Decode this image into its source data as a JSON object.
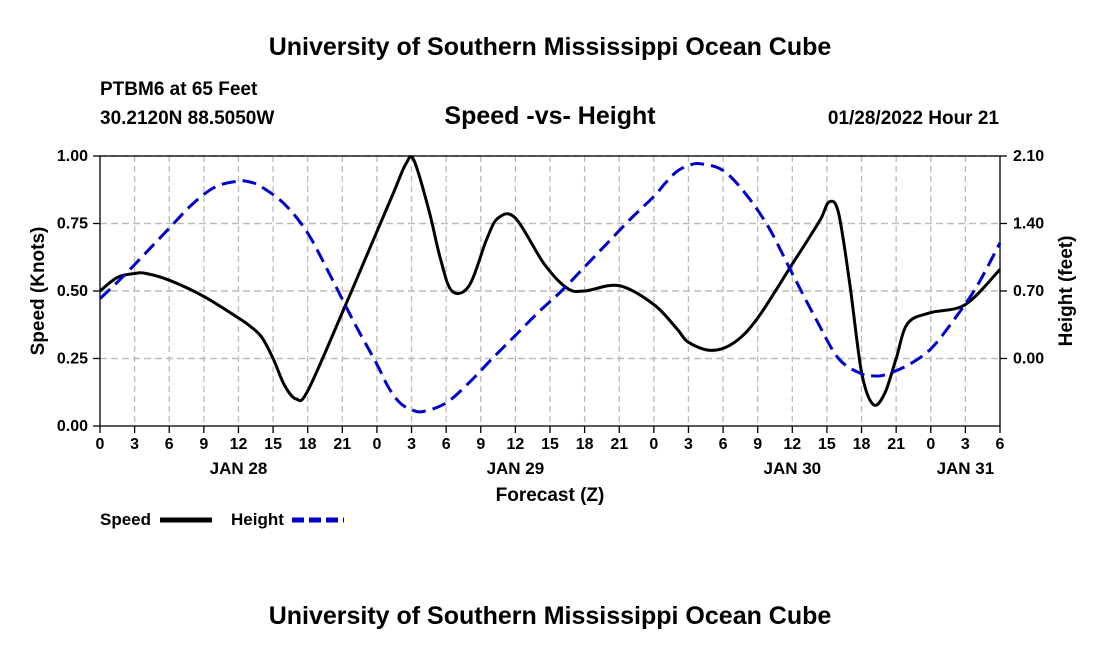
{
  "header": {
    "title": "University of Southern Mississippi Ocean Cube",
    "footer_title": "University of Southern Mississippi Ocean Cube",
    "station": "PTBM6 at 65 Feet",
    "coordinates": "30.2120N  88.5050W",
    "subtitle": "Speed -vs- Height",
    "datetime": "01/28/2022 Hour 21"
  },
  "legend": {
    "speed_label": "Speed",
    "height_label": "Height"
  },
  "colors": {
    "speed": "#000000",
    "height": "#0000cc",
    "grid": "#bbbbbb"
  },
  "chart_data": {
    "type": "line",
    "title": "Speed -vs- Height",
    "xlabel": "Forecast (Z)",
    "ylabel": "Speed (Knots)",
    "y2label": "Height (feet)",
    "x_unit": "hours since 00Z Jan 28",
    "xlim": [
      0,
      78
    ],
    "ylim": [
      0,
      1
    ],
    "y2lim": [
      -0.7,
      2.1
    ],
    "x_ticks": [
      0,
      3,
      6,
      9,
      12,
      15,
      18,
      21,
      24,
      27,
      30,
      33,
      36,
      39,
      42,
      45,
      48,
      51,
      54,
      57,
      60,
      63,
      66,
      69,
      72,
      75,
      78
    ],
    "x_tick_labels": [
      "0",
      "3",
      "6",
      "9",
      "12",
      "15",
      "18",
      "21",
      "0",
      "3",
      "6",
      "9",
      "12",
      "15",
      "18",
      "21",
      "0",
      "3",
      "6",
      "9",
      "12",
      "15",
      "18",
      "21",
      "0",
      "3",
      "6"
    ],
    "date_ticks": [
      12,
      36,
      60,
      75
    ],
    "date_labels": [
      "JAN 28",
      "JAN 29",
      "JAN 30",
      "JAN 31"
    ],
    "y_ticks": [
      0,
      0.25,
      0.5,
      0.75,
      1
    ],
    "y_tick_labels": [
      "0.00",
      "0.25",
      "0.50",
      "0.75",
      "1.00"
    ],
    "y2_ticks": [
      0,
      0.7,
      1.4,
      2.1
    ],
    "y2_tick_labels": [
      "0.00",
      "0.70",
      "1.40",
      "2.10"
    ],
    "series": [
      {
        "name": "Speed",
        "axis": "left",
        "style": "solid",
        "x": [
          0,
          1.5,
          3,
          4,
          6,
          9,
          12,
          13,
          14,
          15,
          16,
          17,
          18,
          21,
          24,
          25.5,
          26.5,
          27.2,
          28.5,
          29.5,
          30.5,
          32,
          33.5,
          34.5,
          36,
          38.5,
          40.5,
          42,
          45,
          48,
          50,
          51,
          53,
          55,
          57,
          60,
          61.5,
          62.5,
          63.2,
          64,
          65,
          66,
          67,
          68,
          69,
          70,
          72,
          75,
          78
        ],
        "values": [
          0.5,
          0.55,
          0.565,
          0.565,
          0.54,
          0.48,
          0.4,
          0.37,
          0.33,
          0.25,
          0.15,
          0.1,
          0.13,
          0.42,
          0.72,
          0.87,
          0.97,
          0.985,
          0.8,
          0.62,
          0.5,
          0.52,
          0.69,
          0.77,
          0.77,
          0.6,
          0.51,
          0.5,
          0.52,
          0.45,
          0.36,
          0.31,
          0.28,
          0.31,
          0.4,
          0.6,
          0.7,
          0.77,
          0.83,
          0.79,
          0.52,
          0.2,
          0.08,
          0.12,
          0.25,
          0.38,
          0.42,
          0.45,
          0.58
        ]
      },
      {
        "name": "Height",
        "axis": "right",
        "style": "dashed",
        "x": [
          0,
          2,
          4,
          6,
          8,
          10,
          12,
          13,
          14,
          16,
          18,
          20,
          22,
          24,
          25,
          26,
          27,
          28,
          30,
          32,
          34,
          36,
          38,
          40,
          42,
          44,
          46,
          48,
          49,
          50,
          51,
          52,
          54,
          56,
          58,
          60,
          62,
          64,
          66,
          67,
          68,
          70,
          72,
          74,
          76,
          78
        ],
        "values": [
          0.62,
          0.85,
          1.1,
          1.35,
          1.6,
          1.78,
          1.84,
          1.83,
          1.78,
          1.6,
          1.3,
          0.85,
          0.38,
          -0.06,
          -0.3,
          -0.46,
          -0.53,
          -0.55,
          -0.46,
          -0.25,
          0.0,
          0.24,
          0.48,
          0.7,
          0.95,
          1.2,
          1.45,
          1.68,
          1.82,
          1.94,
          2.0,
          2.02,
          1.95,
          1.7,
          1.35,
          0.88,
          0.42,
          0.0,
          -0.16,
          -0.18,
          -0.17,
          -0.07,
          0.1,
          0.4,
          0.75,
          1.2
        ]
      }
    ]
  }
}
